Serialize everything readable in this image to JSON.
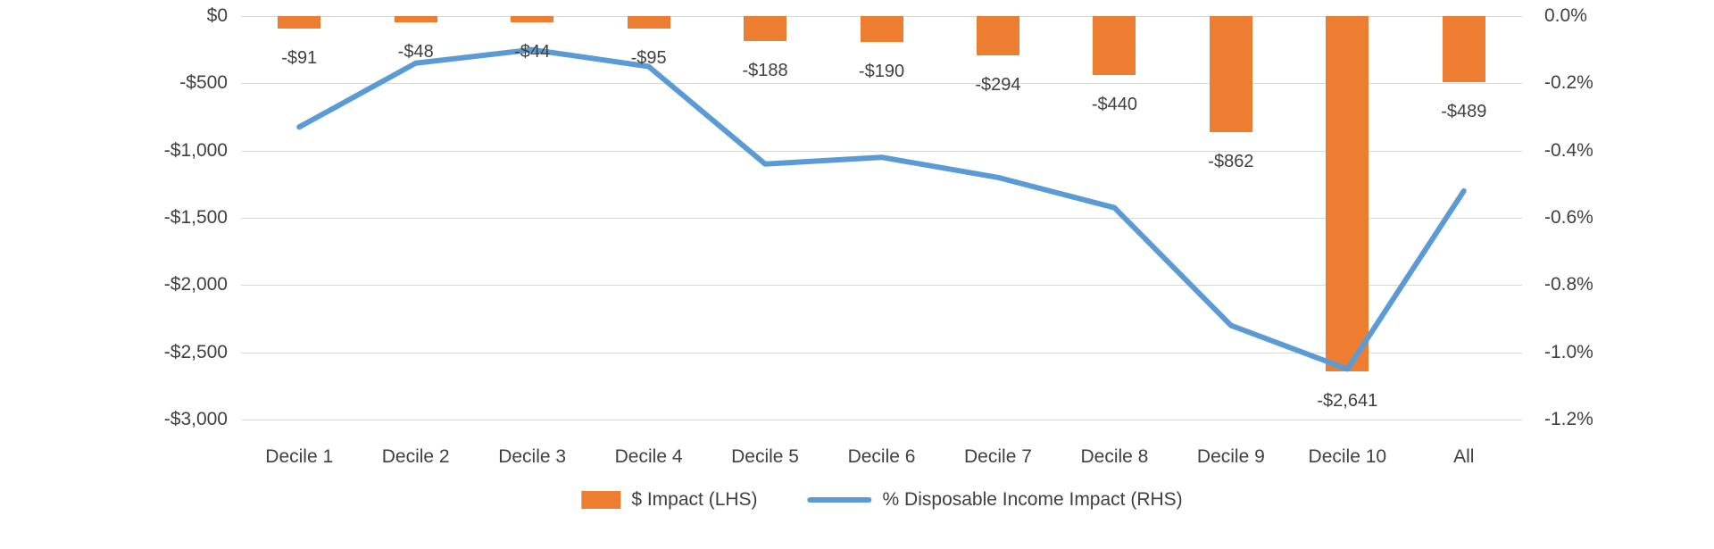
{
  "chart_data": {
    "type": "bar",
    "subtype": "combo-bar-line",
    "categories": [
      "Decile 1",
      "Decile 2",
      "Decile 3",
      "Decile 4",
      "Decile 5",
      "Decile 6",
      "Decile 7",
      "Decile 8",
      "Decile 9",
      "Decile 10",
      "All"
    ],
    "series": [
      {
        "name": "$ Impact (LHS)",
        "type": "bar",
        "axis": "left",
        "values": [
          -91,
          -48,
          -44,
          -95,
          -188,
          -190,
          -294,
          -440,
          -862,
          -2641,
          -489
        ],
        "labels": [
          "-$91",
          "-$48",
          "-$44",
          "-$95",
          "-$188",
          "-$190",
          "-$294",
          "-$440",
          "-$862",
          "-$2,641",
          "-$489"
        ]
      },
      {
        "name": "% Disposable Income Impact (RHS)",
        "type": "line",
        "axis": "right",
        "values": [
          -0.33,
          -0.14,
          -0.1,
          -0.15,
          -0.44,
          -0.42,
          -0.48,
          -0.57,
          -0.92,
          -1.05,
          -0.52
        ]
      }
    ],
    "left_axis": {
      "ticks": [
        "$0",
        "-$500",
        "-$1,000",
        "-$1,500",
        "-$2,000",
        "-$2,500",
        "-$3,000"
      ],
      "min": -3000,
      "max": 0
    },
    "right_axis": {
      "ticks": [
        "0.0%",
        "-0.2%",
        "-0.4%",
        "-0.6%",
        "-0.8%",
        "-1.0%",
        "-1.2%"
      ],
      "min": -1.2,
      "max": 0
    },
    "legend": [
      "$ Impact (LHS)",
      "% Disposable Income Impact (RHS)"
    ],
    "legend_position": "bottom",
    "grid": true,
    "title": "",
    "xlabel": "",
    "ylabel_left": "",
    "ylabel_right": ""
  },
  "colors": {
    "bar": "#ED7D31",
    "line": "#5B9BD5",
    "gridline": "#D9D9D9",
    "text": "#404040",
    "background": "#FFFFFF"
  }
}
